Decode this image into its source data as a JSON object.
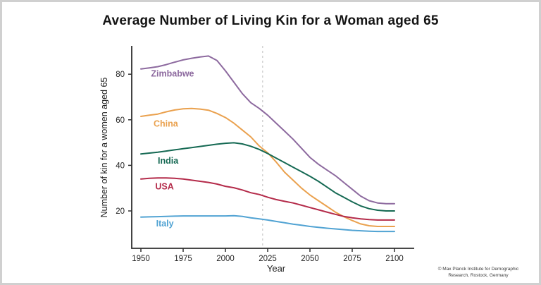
{
  "chart_data": {
    "type": "line",
    "title": "Average Number of Living Kin for a Woman aged 65",
    "xlabel": "Year",
    "ylabel": "Number of kin for a women aged 65",
    "x_ticks": [
      1950,
      1975,
      2000,
      2025,
      2050,
      2075,
      2100
    ],
    "y_ticks": [
      20,
      40,
      60,
      80
    ],
    "xlim": [
      1945,
      2107
    ],
    "ylim": [
      8,
      92
    ],
    "grid": false,
    "legend_position": "inline-labels",
    "axis_color": "#2f2f2f",
    "tick_label_color": "#242424",
    "reference_line": {
      "year": 2022,
      "style": "dashed",
      "color": "#c9c9c9"
    },
    "years": [
      1950,
      1955,
      1960,
      1965,
      1970,
      1975,
      1980,
      1985,
      1990,
      1995,
      2000,
      2005,
      2010,
      2015,
      2020,
      2025,
      2030,
      2035,
      2040,
      2045,
      2050,
      2055,
      2060,
      2065,
      2070,
      2075,
      2080,
      2085,
      2090,
      2095,
      2100
    ],
    "series": [
      {
        "name": "Zimbabwe",
        "color": "#8d6a9f",
        "values": [
          82.3,
          82.8,
          83.3,
          84.2,
          85.3,
          86.3,
          87.0,
          87.6,
          88.0,
          86.0,
          81.5,
          76.5,
          71.5,
          67.5,
          65.0,
          62.0,
          58.5,
          55.0,
          51.5,
          47.5,
          43.5,
          40.5,
          38.0,
          35.5,
          32.5,
          29.5,
          26.5,
          24.5,
          23.5,
          23.2,
          23.2
        ],
        "label_at": {
          "year": 1956,
          "value": 79.0
        }
      },
      {
        "name": "China",
        "color": "#eaa14e",
        "values": [
          61.5,
          62.0,
          62.5,
          63.5,
          64.3,
          64.8,
          65.0,
          64.7,
          64.2,
          62.8,
          61.0,
          58.5,
          55.5,
          52.5,
          48.5,
          45.5,
          41.5,
          37.0,
          33.5,
          30.0,
          27.0,
          24.5,
          22.0,
          19.5,
          17.5,
          15.8,
          14.3,
          13.5,
          13.2,
          13.2,
          13.2
        ],
        "label_at": {
          "year": 1957.5,
          "value": 57.0
        }
      },
      {
        "name": "India",
        "color": "#15695356",
        "values": [
          45.0,
          45.4,
          45.8,
          46.3,
          46.8,
          47.3,
          47.8,
          48.3,
          48.8,
          49.3,
          49.7,
          49.9,
          49.4,
          48.4,
          47.0,
          45.2,
          43.2,
          41.2,
          39.2,
          37.2,
          35.2,
          33.0,
          30.5,
          28.0,
          26.0,
          24.0,
          22.2,
          21.0,
          20.3,
          20.0,
          20.0
        ],
        "label_at": {
          "year": 1960,
          "value": 40.8
        }
      },
      {
        "name": "USA",
        "color": "#b42b4a",
        "values": [
          34.0,
          34.3,
          34.5,
          34.5,
          34.3,
          34.0,
          33.5,
          33.0,
          32.5,
          31.8,
          30.8,
          30.2,
          29.2,
          28.0,
          27.2,
          26.0,
          25.0,
          24.2,
          23.5,
          22.5,
          21.5,
          20.5,
          19.5,
          18.5,
          17.6,
          17.0,
          16.5,
          16.2,
          16.0,
          16.0,
          16.0
        ],
        "label_at": {
          "year": 1958.5,
          "value": 29.5
        }
      },
      {
        "name": "Italy",
        "color": "#51a3d3",
        "values": [
          17.3,
          17.4,
          17.5,
          17.6,
          17.7,
          17.8,
          17.8,
          17.8,
          17.8,
          17.8,
          17.8,
          17.9,
          17.6,
          17.0,
          16.5,
          16.0,
          15.4,
          14.8,
          14.2,
          13.7,
          13.2,
          12.8,
          12.4,
          12.1,
          11.8,
          11.5,
          11.3,
          11.1,
          11.0,
          11.0,
          11.0
        ],
        "label_at": {
          "year": 1959,
          "value": 13.2
        }
      }
    ]
  },
  "footer": {
    "credit_line1": "© Max Planck Institute for Demographic",
    "credit_line2": "Research, Rostock, Germany"
  }
}
